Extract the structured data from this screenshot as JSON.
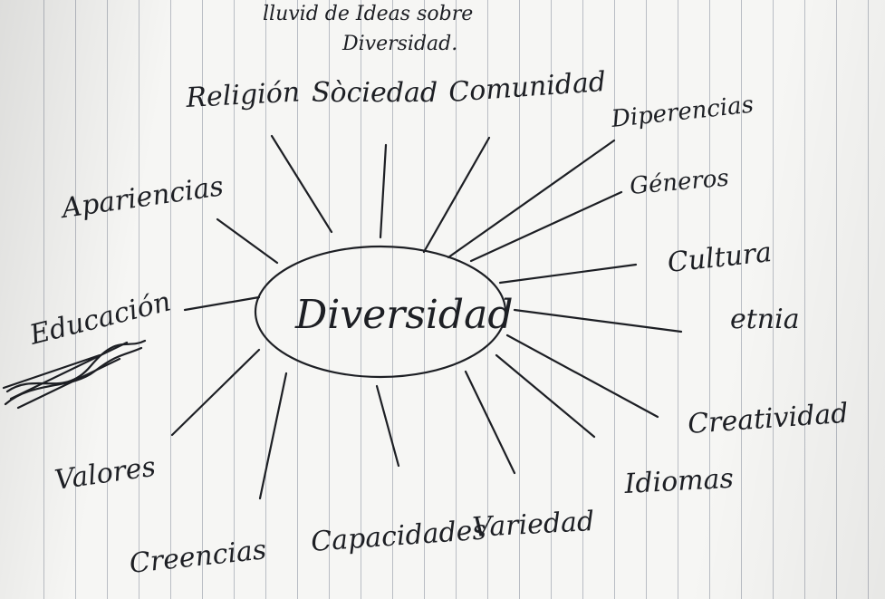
{
  "title": {
    "line1": "lluvid de Ideas sobre",
    "line2": "Diversidad."
  },
  "center": "Diversidad",
  "ideas": {
    "religion": "Religión",
    "sociedad": "Sòciedad",
    "comunidad": "Comunidad",
    "diferencias": "Diperencias",
    "generos": "Géneros",
    "cultura": "Cultura",
    "etnia": "etnia",
    "creatividad": "Creatividad",
    "idiomas": "Idiomas",
    "variedad": "Variedad",
    "capacidades": "Capacidades",
    "creencias": "Creencias",
    "valores": "Valores",
    "educacion": "Educación",
    "apariencia": "Apariencias"
  },
  "ink_color": "#1d1f24",
  "line_color": "#b9bdc4"
}
